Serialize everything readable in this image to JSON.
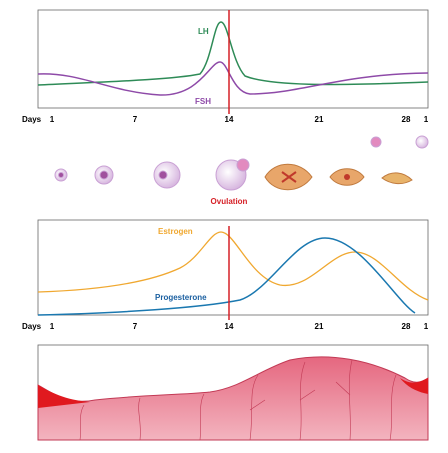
{
  "hormones_top": {
    "lh": "LH",
    "fsh": "FSH"
  },
  "axis_top": {
    "label": "Days",
    "ticks": [
      "1",
      "7",
      "14",
      "21",
      "28",
      "1"
    ]
  },
  "ovulation": "Ovulation",
  "hormones_bottom": {
    "estrogen": "Estrogen",
    "progesterone": "Progesterone"
  },
  "axis_bottom": {
    "label": "Days",
    "ticks": [
      "1",
      "7",
      "14",
      "21",
      "28",
      "1"
    ]
  }
}
